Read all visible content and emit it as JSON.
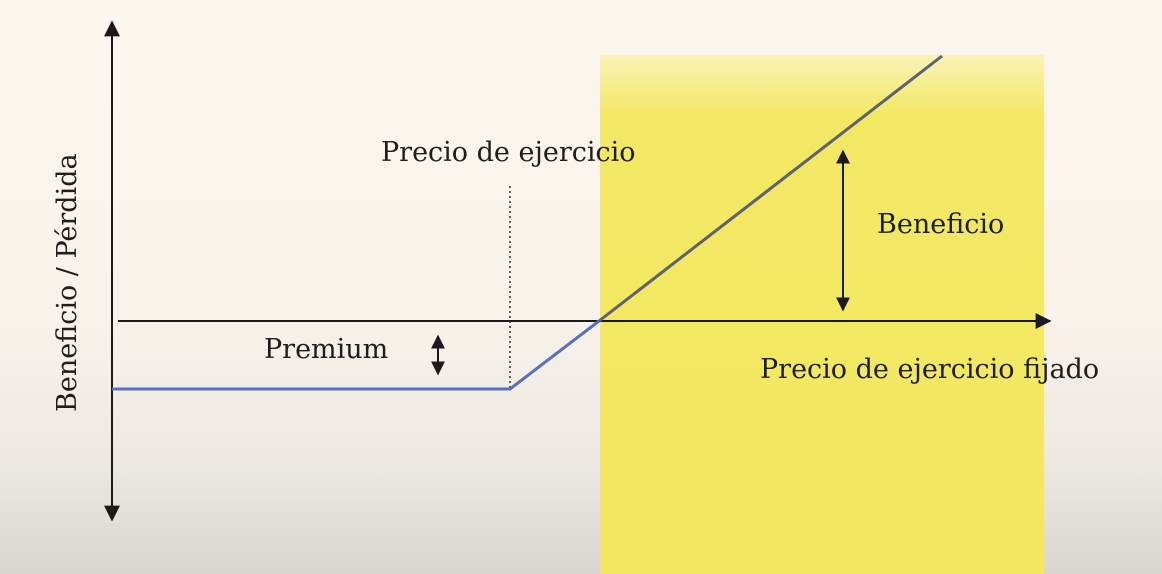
{
  "diagram": {
    "y_axis_label": "Beneficio / Pérdida",
    "x_axis_label": "Precio de ejercicio fijado",
    "strike_label": "Precio de ejercicio",
    "premium_label": "Premium",
    "profit_label": "Beneficio",
    "colors": {
      "payoff_line_loss": "#5b6fc0",
      "payoff_line_profit": "#5c6274",
      "profit_zone": "#f1e760",
      "axes": "#1a1a1a"
    }
  }
}
